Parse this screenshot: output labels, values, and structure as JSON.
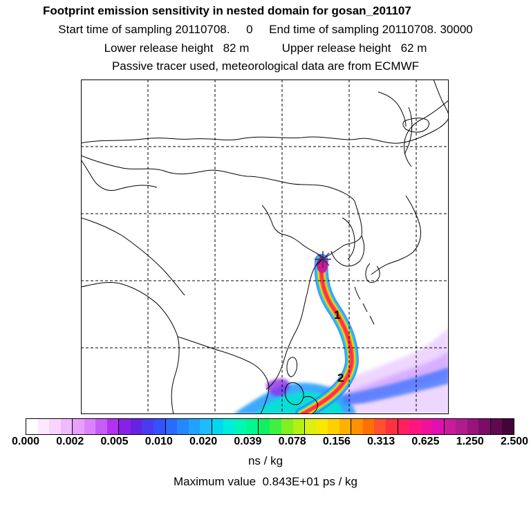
{
  "header": {
    "title": "Footprint emission sensitivity in nested domain for gosan_201107",
    "sampling_line": "Start time of sampling 20110708.     0     End time of sampling 20110708. 30000",
    "release_line": "Lower release height   82 m          Upper release height   62 m",
    "tracer_line": "Passive tracer used, meteorological data are from ECMWF"
  },
  "map": {
    "markers": [
      "1",
      "2"
    ],
    "colors": {
      "coast": "#000000",
      "grid": "#000000",
      "receptor_star": "#3a2c6e",
      "plume_core": "#ff2a6a",
      "plume_mid": "#ffb000",
      "plume_edge": "#3a9cff",
      "plume_outer": "#d9b6ff"
    }
  },
  "colorbar": {
    "tick_labels": [
      "0.000",
      "0.002",
      "0.005",
      "0.010",
      "0.020",
      "0.039",
      "0.078",
      "0.156",
      "0.313",
      "0.625",
      "1.250",
      "2.500"
    ],
    "colors": [
      "#ffffff",
      "#fde8ff",
      "#f8d4ff",
      "#f0baff",
      "#e7a0ff",
      "#dc82ff",
      "#c85cf7",
      "#b032f0",
      "#8a20e6",
      "#6622e0",
      "#4a3af0",
      "#3450ff",
      "#2a6cff",
      "#2488ff",
      "#20a2ff",
      "#1cbcff",
      "#00d8f0",
      "#00ecdc",
      "#00f6b4",
      "#00f890",
      "#10f064",
      "#40f040",
      "#80f020",
      "#b4f010",
      "#dcf010",
      "#f8e800",
      "#ffd000",
      "#ffb000",
      "#ff9000",
      "#ff7000",
      "#ff5030",
      "#ff3040",
      "#ff2060",
      "#ff1480",
      "#f0109c",
      "#e010b0",
      "#c81c9c",
      "#b01c8c",
      "#98147c",
      "#7c0c68",
      "#600850",
      "#440438"
    ],
    "units": "ns / kg"
  },
  "footer": {
    "max_value": "Maximum value  0.843E+01 ps / kg"
  }
}
